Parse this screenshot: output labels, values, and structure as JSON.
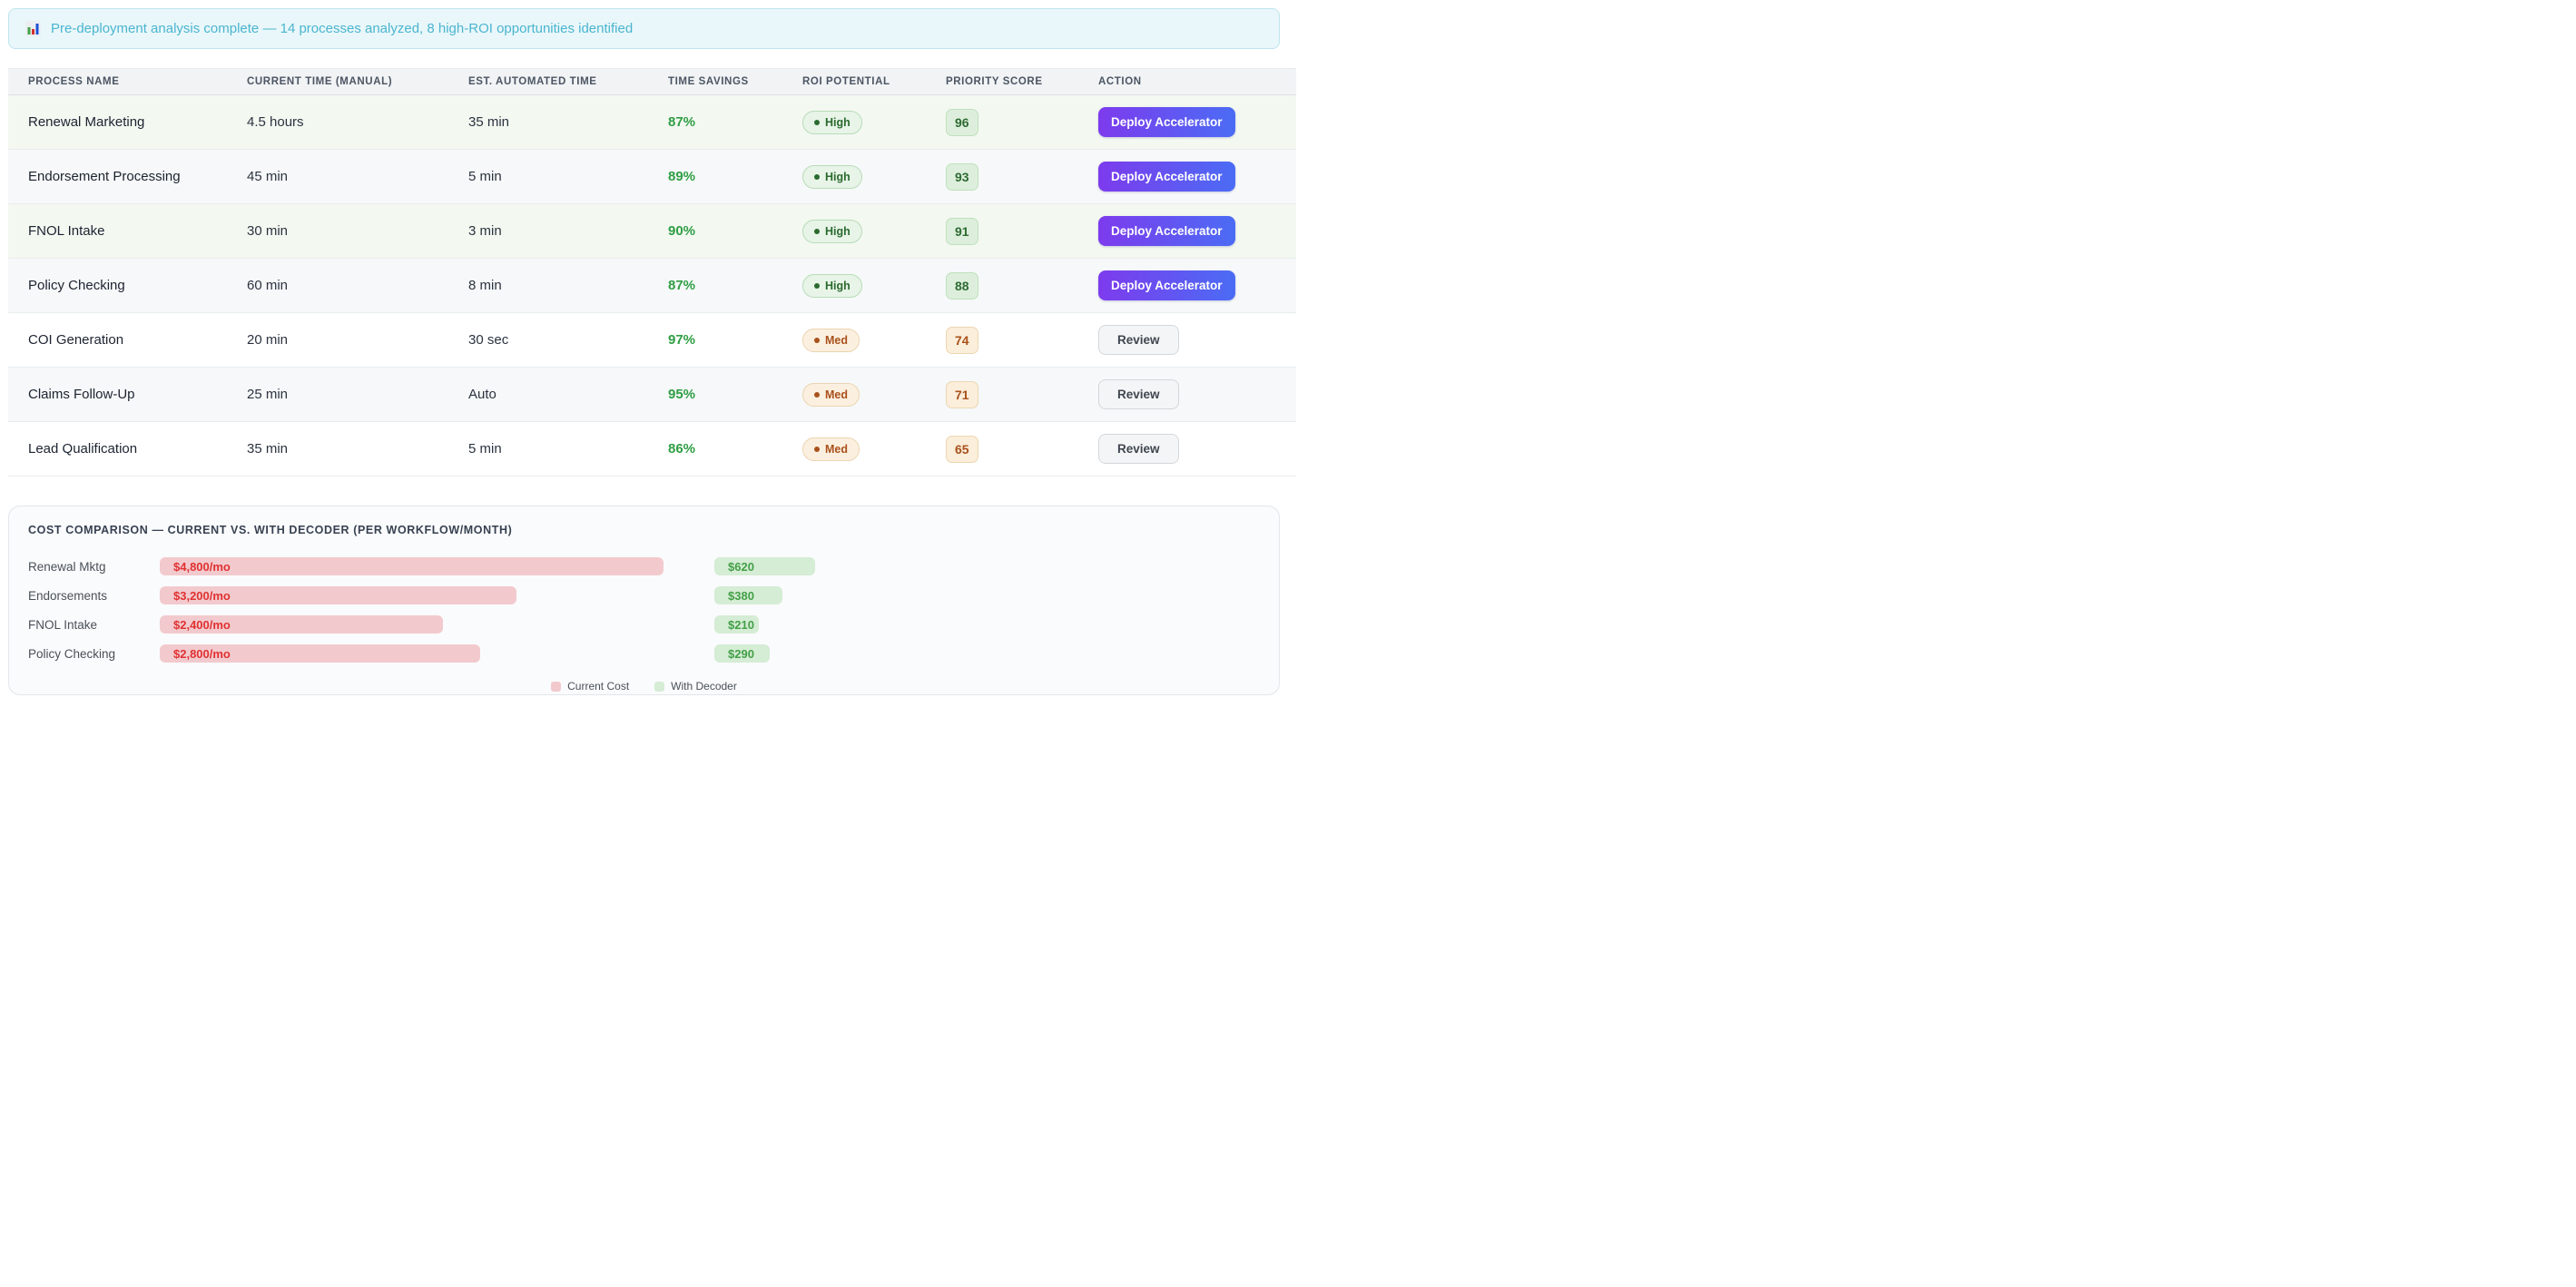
{
  "banner": {
    "icon": "bar-chart-icon",
    "text": "Pre-deployment analysis complete — 14 processes analyzed, 8 high-ROI opportunities identified"
  },
  "table": {
    "columns": [
      "Process Name",
      "Current Time (Manual)",
      "Est. Automated Time",
      "Time Savings",
      "ROI Potential",
      "Priority Score",
      "Action"
    ],
    "rows": [
      {
        "process": "Renewal Marketing",
        "current_time": "4.5 hours",
        "automated_time": "35 min",
        "time_savings": "87%",
        "roi": "High",
        "roi_tier": "high",
        "priority_score": "96",
        "action": "Deploy Accelerator",
        "action_type": "deploy"
      },
      {
        "process": "Endorsement Processing",
        "current_time": "45 min",
        "automated_time": "5 min",
        "time_savings": "89%",
        "roi": "High",
        "roi_tier": "high",
        "priority_score": "93",
        "action": "Deploy Accelerator",
        "action_type": "deploy"
      },
      {
        "process": "FNOL Intake",
        "current_time": "30 min",
        "automated_time": "3 min",
        "time_savings": "90%",
        "roi": "High",
        "roi_tier": "high",
        "priority_score": "91",
        "action": "Deploy Accelerator",
        "action_type": "deploy"
      },
      {
        "process": "Policy Checking",
        "current_time": "60 min",
        "automated_time": "8 min",
        "time_savings": "87%",
        "roi": "High",
        "roi_tier": "high",
        "priority_score": "88",
        "action": "Deploy Accelerator",
        "action_type": "deploy"
      },
      {
        "process": "COI Generation",
        "current_time": "20 min",
        "automated_time": "30 sec",
        "time_savings": "97%",
        "roi": "Med",
        "roi_tier": "med",
        "priority_score": "74",
        "action": "Review",
        "action_type": "review"
      },
      {
        "process": "Claims Follow-Up",
        "current_time": "25 min",
        "automated_time": "Auto",
        "time_savings": "95%",
        "roi": "Med",
        "roi_tier": "med",
        "priority_score": "71",
        "action": "Review",
        "action_type": "review"
      },
      {
        "process": "Lead Qualification",
        "current_time": "35 min",
        "automated_time": "5 min",
        "time_savings": "86%",
        "roi": "Med",
        "roi_tier": "med",
        "priority_score": "65",
        "action": "Review",
        "action_type": "review"
      }
    ]
  },
  "cost_panel": {
    "title": "Cost Comparison — Current vs. With Decoder (per workflow/month)",
    "legend": [
      {
        "label": "Current Cost",
        "color": "#f2cace"
      },
      {
        "label": "With Decoder",
        "color": "#d5ecd5"
      }
    ]
  },
  "chart_data": {
    "type": "bar",
    "orientation": "horizontal",
    "title": "Cost Comparison — Current vs. With Decoder (per workflow/month)",
    "categories": [
      "Renewal Mktg",
      "Endorsements",
      "FNOL Intake",
      "Policy Checking"
    ],
    "series": [
      {
        "name": "Current Cost",
        "values": [
          4800,
          3200,
          2400,
          2800
        ],
        "labels": [
          "$4,800/mo",
          "$3,200/mo",
          "$2,400/mo",
          "$2,800/mo"
        ]
      },
      {
        "name": "With Decoder",
        "values": [
          620,
          380,
          210,
          290
        ],
        "labels": [
          "$620",
          "$380",
          "$210",
          "$290"
        ]
      }
    ],
    "legend_position": "bottom",
    "grid": false
  },
  "colors": {
    "banner_bg": "#e9f7fa",
    "banner_text": "#4ab5cf",
    "savings_green": "#2f9e44",
    "deploy_gradient_start": "#7d3bed",
    "deploy_gradient_end": "#4b6cf5",
    "current_cost_bar": "#f2cace",
    "current_cost_text": "#e03131",
    "decoder_bar": "#d5ecd5",
    "decoder_text": "#43a047"
  }
}
